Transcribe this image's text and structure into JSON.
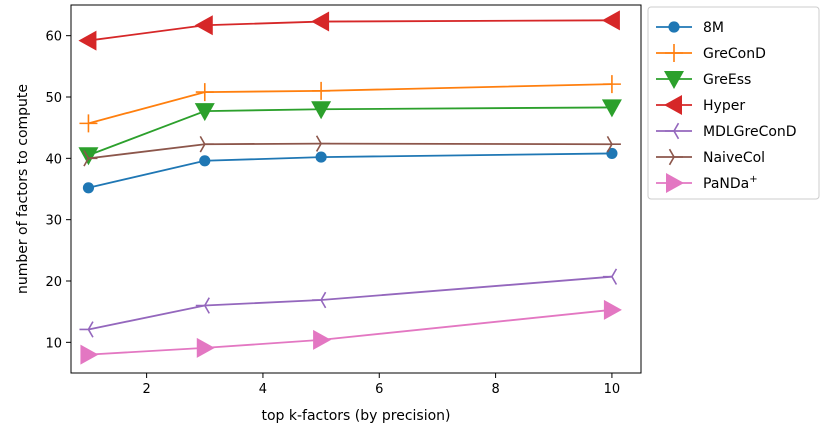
{
  "chart_data": {
    "type": "line",
    "xlabel": "top k-factors (by precision)",
    "ylabel": "number of factors to compute",
    "xlim": [
      0.7,
      10.5
    ],
    "ylim": [
      5,
      65
    ],
    "xticks": [
      2,
      4,
      6,
      8,
      10
    ],
    "yticks": [
      10,
      20,
      30,
      40,
      50,
      60
    ],
    "grid": false,
    "legend_position": "outside-right",
    "x": [
      1,
      3,
      5,
      10
    ],
    "series": [
      {
        "name": "8M",
        "color": "#1f77b4",
        "marker": "circle",
        "values": [
          35.2,
          39.6,
          40.2,
          40.8
        ]
      },
      {
        "name": "GreConD",
        "color": "#ff7f0e",
        "marker": "plus",
        "values": [
          45.7,
          50.8,
          51.0,
          52.1
        ]
      },
      {
        "name": "GreEss",
        "color": "#2ca02c",
        "marker": "triangle-down",
        "values": [
          40.5,
          47.7,
          48.0,
          48.3
        ]
      },
      {
        "name": "Hyper",
        "color": "#d62728",
        "marker": "triangle-left",
        "values": [
          59.2,
          61.7,
          62.3,
          62.5
        ]
      },
      {
        "name": "MDLGreConD",
        "color": "#9467bd",
        "marker": "tri-left",
        "values": [
          12.1,
          16.0,
          16.9,
          20.7
        ]
      },
      {
        "name": "NaiveCol",
        "color": "#8c564b",
        "marker": "tri-right",
        "values": [
          40.0,
          42.3,
          42.4,
          42.3
        ]
      },
      {
        "name": "PaNDa",
        "name_sup": "+",
        "color": "#e377c2",
        "marker": "triangle-right",
        "values": [
          8.0,
          9.1,
          10.4,
          15.3
        ]
      }
    ]
  }
}
